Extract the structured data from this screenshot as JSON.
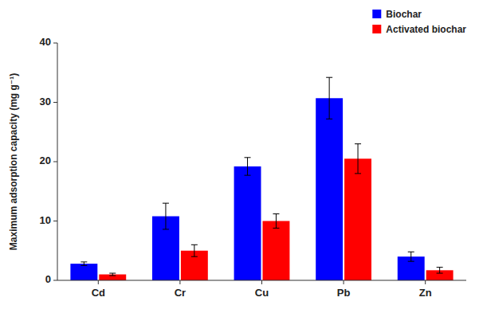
{
  "chart_data": {
    "type": "bar",
    "categories": [
      "Cd",
      "Cr",
      "Cu",
      "Pb",
      "Zn"
    ],
    "series": [
      {
        "name": "Biochar",
        "color": "#0000FF",
        "values": [
          2.8,
          10.8,
          19.2,
          30.7,
          4.0
        ],
        "errors": [
          0.3,
          2.2,
          1.5,
          3.5,
          0.8
        ]
      },
      {
        "name": "Activated biochar",
        "color": "#FF0000",
        "values": [
          1.0,
          5.0,
          10.0,
          20.5,
          1.7
        ],
        "errors": [
          0.2,
          1.0,
          1.2,
          2.5,
          0.5
        ]
      }
    ],
    "y_label": "Maximum adsorption capacity (mg g⁻¹)",
    "ylim": [
      0,
      40
    ],
    "yticks": [
      0,
      10,
      20,
      30,
      40
    ],
    "grid": false,
    "legend": "upper right"
  }
}
